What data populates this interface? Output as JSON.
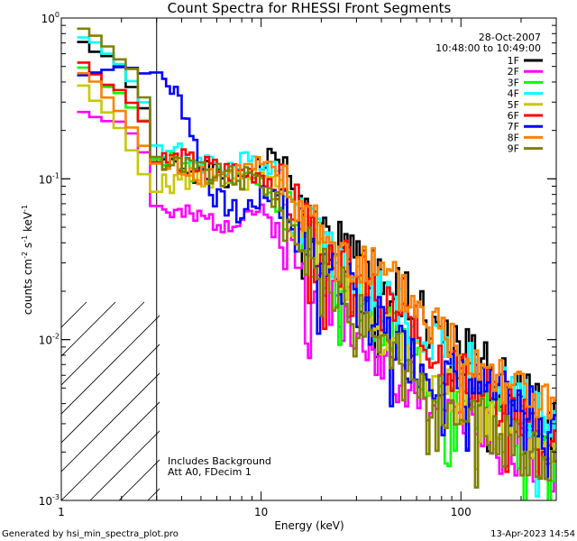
{
  "chart_data": {
    "type": "line",
    "title": "Count Spectra for RHESSI Front Segments",
    "xlabel": "Energy (keV)",
    "ylabel_main": "counts cm",
    "ylabel_exp1": "-2",
    "ylabel_mid": " s",
    "ylabel_exp2": "-1",
    "ylabel_end": " keV",
    "ylabel_exp3": "-1",
    "x_scale": "log",
    "y_scale": "log",
    "xlim": [
      1,
      300
    ],
    "ylim": [
      0.001,
      1
    ],
    "x_ticks": [
      {
        "value": 1,
        "label": "1"
      },
      {
        "value": 10,
        "label": "10"
      },
      {
        "value": 100,
        "label": "100"
      }
    ],
    "y_ticks": [
      {
        "value": 1,
        "base": "10",
        "exp": "0"
      },
      {
        "value": 0.1,
        "base": "10",
        "exp": "-1"
      },
      {
        "value": 0.01,
        "base": "10",
        "exp": "-2"
      },
      {
        "value": 0.001,
        "base": "10",
        "exp": "-3"
      }
    ],
    "date": "28-Oct-2007",
    "time_range": "10:48:00 to 10:49:00",
    "attenuator_cutoff_kev": 3,
    "annotations": [
      "Includes Background",
      "Att A0, FDecim 1"
    ],
    "footer_left": "Generated by hsi_min_spectra_plot.pro",
    "footer_right": "13-Apr-2023 14:54",
    "series": [
      {
        "name": "1F",
        "color": "#000000",
        "seed": 1,
        "points": [
          [
            1.2,
            0.75
          ],
          [
            1.5,
            0.62
          ],
          [
            2,
            0.48
          ],
          [
            2.5,
            0.32
          ],
          [
            3,
            0.12
          ],
          [
            4,
            0.12
          ],
          [
            5,
            0.11
          ],
          [
            7,
            0.1
          ],
          [
            10,
            0.12
          ],
          [
            12,
            0.14
          ],
          [
            15,
            0.065
          ],
          [
            20,
            0.045
          ],
          [
            30,
            0.03
          ],
          [
            40,
            0.022
          ],
          [
            55,
            0.02
          ],
          [
            70,
            0.013
          ],
          [
            100,
            0.0085
          ],
          [
            150,
            0.006
          ],
          [
            200,
            0.0045
          ],
          [
            290,
            0.003
          ]
        ]
      },
      {
        "name": "2F",
        "color": "#ff00ff",
        "seed": 2,
        "points": [
          [
            1.2,
            0.27
          ],
          [
            1.5,
            0.25
          ],
          [
            2,
            0.22
          ],
          [
            2.5,
            0.18
          ],
          [
            3,
            0.065
          ],
          [
            4,
            0.058
          ],
          [
            5,
            0.055
          ],
          [
            7,
            0.055
          ],
          [
            9,
            0.065
          ],
          [
            12,
            0.05
          ],
          [
            15,
            0.03
          ],
          [
            20,
            0.02
          ],
          [
            30,
            0.012
          ],
          [
            40,
            0.007
          ],
          [
            55,
            0.0055
          ],
          [
            70,
            0.0045
          ],
          [
            100,
            0.0032
          ],
          [
            150,
            0.0026
          ],
          [
            200,
            0.0022
          ],
          [
            290,
            0.0015
          ]
        ]
      },
      {
        "name": "3F",
        "color": "#00ff00",
        "seed": 3,
        "points": [
          [
            1.2,
            0.55
          ],
          [
            1.5,
            0.42
          ],
          [
            2,
            0.33
          ],
          [
            2.5,
            0.25
          ],
          [
            3,
            0.13
          ],
          [
            4,
            0.12
          ],
          [
            5,
            0.11
          ],
          [
            7,
            0.1
          ],
          [
            10,
            0.1
          ],
          [
            12,
            0.075
          ],
          [
            15,
            0.05
          ],
          [
            20,
            0.03
          ],
          [
            30,
            0.017
          ],
          [
            40,
            0.012
          ],
          [
            55,
            0.009
          ],
          [
            70,
            0.006
          ],
          [
            100,
            0.0045
          ],
          [
            150,
            0.0034
          ],
          [
            200,
            0.0026
          ],
          [
            290,
            0.0016
          ]
        ]
      },
      {
        "name": "4F",
        "color": "#00ffff",
        "seed": 4,
        "points": [
          [
            1.2,
            0.85
          ],
          [
            1.5,
            0.68
          ],
          [
            2,
            0.5
          ],
          [
            2.5,
            0.35
          ],
          [
            3,
            0.16
          ],
          [
            4,
            0.14
          ],
          [
            5,
            0.13
          ],
          [
            7,
            0.12
          ],
          [
            10,
            0.13
          ],
          [
            12,
            0.12
          ],
          [
            15,
            0.06
          ],
          [
            20,
            0.04
          ],
          [
            30,
            0.025
          ],
          [
            40,
            0.018
          ],
          [
            55,
            0.013
          ],
          [
            70,
            0.01
          ],
          [
            100,
            0.007
          ],
          [
            150,
            0.005
          ],
          [
            200,
            0.004
          ],
          [
            290,
            0.0028
          ]
        ]
      },
      {
        "name": "5F",
        "color": "#c8c800",
        "seed": 5,
        "points": [
          [
            1.2,
            0.4
          ],
          [
            1.5,
            0.3
          ],
          [
            2,
            0.2
          ],
          [
            2.5,
            0.12
          ],
          [
            3,
            0.085
          ],
          [
            4,
            0.1
          ],
          [
            5,
            0.1
          ],
          [
            7,
            0.095
          ],
          [
            10,
            0.1
          ],
          [
            12,
            0.085
          ],
          [
            15,
            0.055
          ],
          [
            20,
            0.035
          ],
          [
            30,
            0.02
          ],
          [
            40,
            0.012
          ],
          [
            55,
            0.008
          ],
          [
            70,
            0.006
          ],
          [
            100,
            0.004
          ],
          [
            150,
            0.003
          ],
          [
            200,
            0.0024
          ],
          [
            290,
            0.0018
          ]
        ]
      },
      {
        "name": "6F",
        "color": "#ff0000",
        "seed": 6,
        "points": [
          [
            1.2,
            0.55
          ],
          [
            1.5,
            0.45
          ],
          [
            2,
            0.35
          ],
          [
            2.5,
            0.26
          ],
          [
            3,
            0.13
          ],
          [
            4,
            0.13
          ],
          [
            5,
            0.12
          ],
          [
            7,
            0.11
          ],
          [
            10,
            0.11
          ],
          [
            12,
            0.09
          ],
          [
            15,
            0.065
          ],
          [
            20,
            0.04
          ],
          [
            30,
            0.025
          ],
          [
            40,
            0.018
          ],
          [
            55,
            0.012
          ],
          [
            70,
            0.009
          ],
          [
            100,
            0.006
          ],
          [
            150,
            0.0045
          ],
          [
            200,
            0.0035
          ],
          [
            290,
            0.0022
          ]
        ]
      },
      {
        "name": "7F",
        "color": "#0000ff",
        "seed": 7,
        "points": [
          [
            1.2,
            0.42
          ],
          [
            1.5,
            0.48
          ],
          [
            2,
            0.5
          ],
          [
            2.5,
            0.48
          ],
          [
            3,
            0.44
          ],
          [
            3.5,
            0.38
          ],
          [
            4,
            0.3
          ],
          [
            4.5,
            0.2
          ],
          [
            5,
            0.12
          ],
          [
            6,
            0.075
          ],
          [
            8,
            0.058
          ],
          [
            9,
            0.072
          ],
          [
            10,
            0.075
          ],
          [
            12,
            0.085
          ],
          [
            15,
            0.05
          ],
          [
            20,
            0.032
          ],
          [
            30,
            0.018
          ],
          [
            40,
            0.012
          ],
          [
            55,
            0.008
          ],
          [
            70,
            0.0065
          ],
          [
            100,
            0.0055
          ],
          [
            150,
            0.0045
          ],
          [
            200,
            0.0038
          ],
          [
            290,
            0.0028
          ]
        ]
      },
      {
        "name": "8F",
        "color": "#ff8000",
        "seed": 8,
        "points": [
          [
            1.2,
            0.5
          ],
          [
            1.5,
            0.38
          ],
          [
            2,
            0.26
          ],
          [
            2.5,
            0.17
          ],
          [
            3,
            0.12
          ],
          [
            4,
            0.12
          ],
          [
            5,
            0.11
          ],
          [
            7,
            0.105
          ],
          [
            10,
            0.12
          ],
          [
            12,
            0.1
          ],
          [
            15,
            0.07
          ],
          [
            20,
            0.05
          ],
          [
            30,
            0.032
          ],
          [
            40,
            0.024
          ],
          [
            55,
            0.018
          ],
          [
            70,
            0.013
          ],
          [
            100,
            0.009
          ],
          [
            150,
            0.0065
          ],
          [
            200,
            0.005
          ],
          [
            290,
            0.0035
          ]
        ]
      },
      {
        "name": "9F",
        "color": "#808000",
        "seed": 9,
        "points": [
          [
            1.2,
            0.95
          ],
          [
            1.5,
            0.75
          ],
          [
            2,
            0.55
          ],
          [
            2.5,
            0.42
          ],
          [
            3,
            0.13
          ],
          [
            4,
            0.12
          ],
          [
            5,
            0.11
          ],
          [
            7,
            0.1
          ],
          [
            10,
            0.1
          ],
          [
            12,
            0.07
          ],
          [
            15,
            0.045
          ],
          [
            20,
            0.028
          ],
          [
            30,
            0.015
          ],
          [
            40,
            0.009
          ],
          [
            55,
            0.0065
          ],
          [
            70,
            0.0045
          ],
          [
            100,
            0.0035
          ],
          [
            150,
            0.0026
          ],
          [
            200,
            0.002
          ],
          [
            290,
            0.0015
          ]
        ]
      }
    ]
  }
}
